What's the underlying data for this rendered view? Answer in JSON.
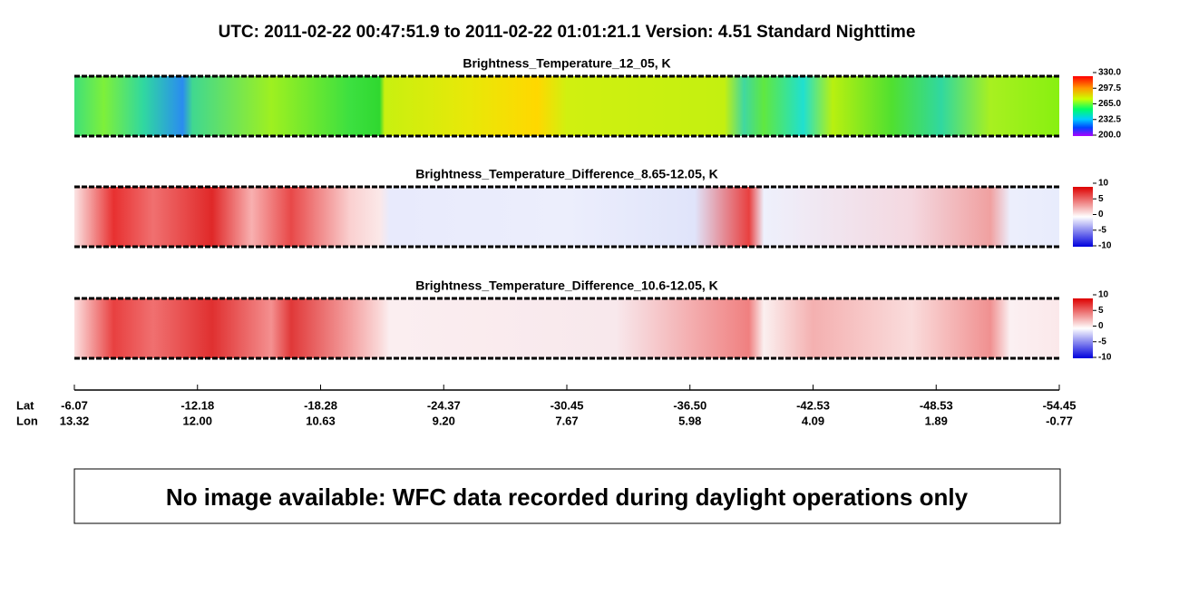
{
  "title": "UTC:  2011-02-22   00:47:51.9  to  2011-02-22   01:01:21.1    Version: 4.51  Standard Nighttime",
  "panels": [
    {
      "title": "Brightness_Temperature_12_05, K",
      "colorbar": [
        "330.0",
        "297.5",
        "265.0",
        "232.5",
        "200.0"
      ]
    },
    {
      "title": "Brightness_Temperature_Difference_8.65-12.05, K",
      "colorbar": [
        "10",
        "5",
        "0",
        "-5",
        "-10"
      ]
    },
    {
      "title": "Brightness_Temperature_Difference_10.6-12.05, K",
      "colorbar": [
        "10",
        "5",
        "0",
        "-5",
        "-10"
      ]
    }
  ],
  "axis": {
    "lat_label": "Lat",
    "lon_label": "Lon",
    "lat": [
      "-6.07",
      "-12.18",
      "-18.28",
      "-24.37",
      "-30.45",
      "-36.50",
      "-42.53",
      "-48.53",
      "-54.45"
    ],
    "lon": [
      "13.32",
      "12.00",
      "10.63",
      "9.20",
      "7.67",
      "5.98",
      "4.09",
      "1.89",
      "-0.77"
    ]
  },
  "message": "No image available: WFC data recorded during daylight operations only"
}
